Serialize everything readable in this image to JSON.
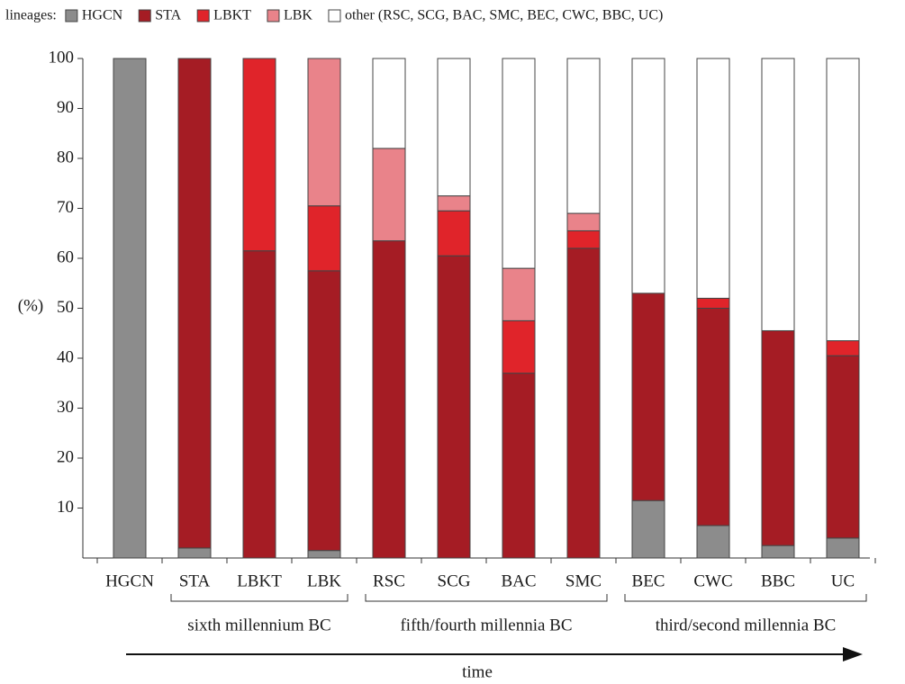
{
  "chart_data": {
    "type": "stacked_bar",
    "legend_title": "lineages:",
    "y_label": "(%)",
    "x_label": "time",
    "categories": [
      "HGCN",
      "STA",
      "LBKT",
      "LBK",
      "RSC",
      "SCG",
      "BAC",
      "SMC",
      "BEC",
      "CWC",
      "BBC",
      "UC"
    ],
    "series": [
      {
        "name": "HGCN",
        "color": "#8c8c8c",
        "values": [
          100,
          2,
          0,
          1.5,
          0,
          0,
          0,
          0,
          11.5,
          6.5,
          2.5,
          4
        ]
      },
      {
        "name": "STA",
        "color": "#a51c24",
        "values": [
          0,
          98,
          61.5,
          56,
          63.5,
          60.5,
          37,
          62,
          41.5,
          43.5,
          43,
          36.5
        ]
      },
      {
        "name": "LBKT",
        "color": "#e0242a",
        "values": [
          0,
          0,
          38.5,
          13,
          0,
          9,
          10.5,
          3.5,
          0,
          2,
          0,
          3
        ]
      },
      {
        "name": "LBK",
        "color": "#e9838a",
        "values": [
          0,
          0,
          0,
          29.5,
          18.5,
          3,
          10.5,
          3.5,
          0,
          0,
          0,
          0
        ]
      },
      {
        "name": "other (RSC, SCG, BAC, SMC, BEC, CWC, BBC, UC)",
        "color": "#ffffff",
        "values": [
          0,
          0,
          0,
          0,
          18,
          27.5,
          42,
          31,
          47,
          48,
          54.5,
          56.5
        ]
      }
    ],
    "groups": [
      {
        "label": "sixth millennium BC",
        "categories": [
          "STA",
          "LBKT",
          "LBK"
        ]
      },
      {
        "label": "fifth/fourth millennia BC",
        "categories": [
          "RSC",
          "SCG",
          "BAC",
          "SMC"
        ]
      },
      {
        "label": "third/second millennia BC",
        "categories": [
          "BEC",
          "CWC",
          "BBC",
          "UC"
        ]
      }
    ],
    "ylim": [
      0,
      100
    ],
    "yticks": [
      10,
      20,
      30,
      40,
      50,
      60,
      70,
      80,
      90,
      100
    ],
    "grid": false
  }
}
